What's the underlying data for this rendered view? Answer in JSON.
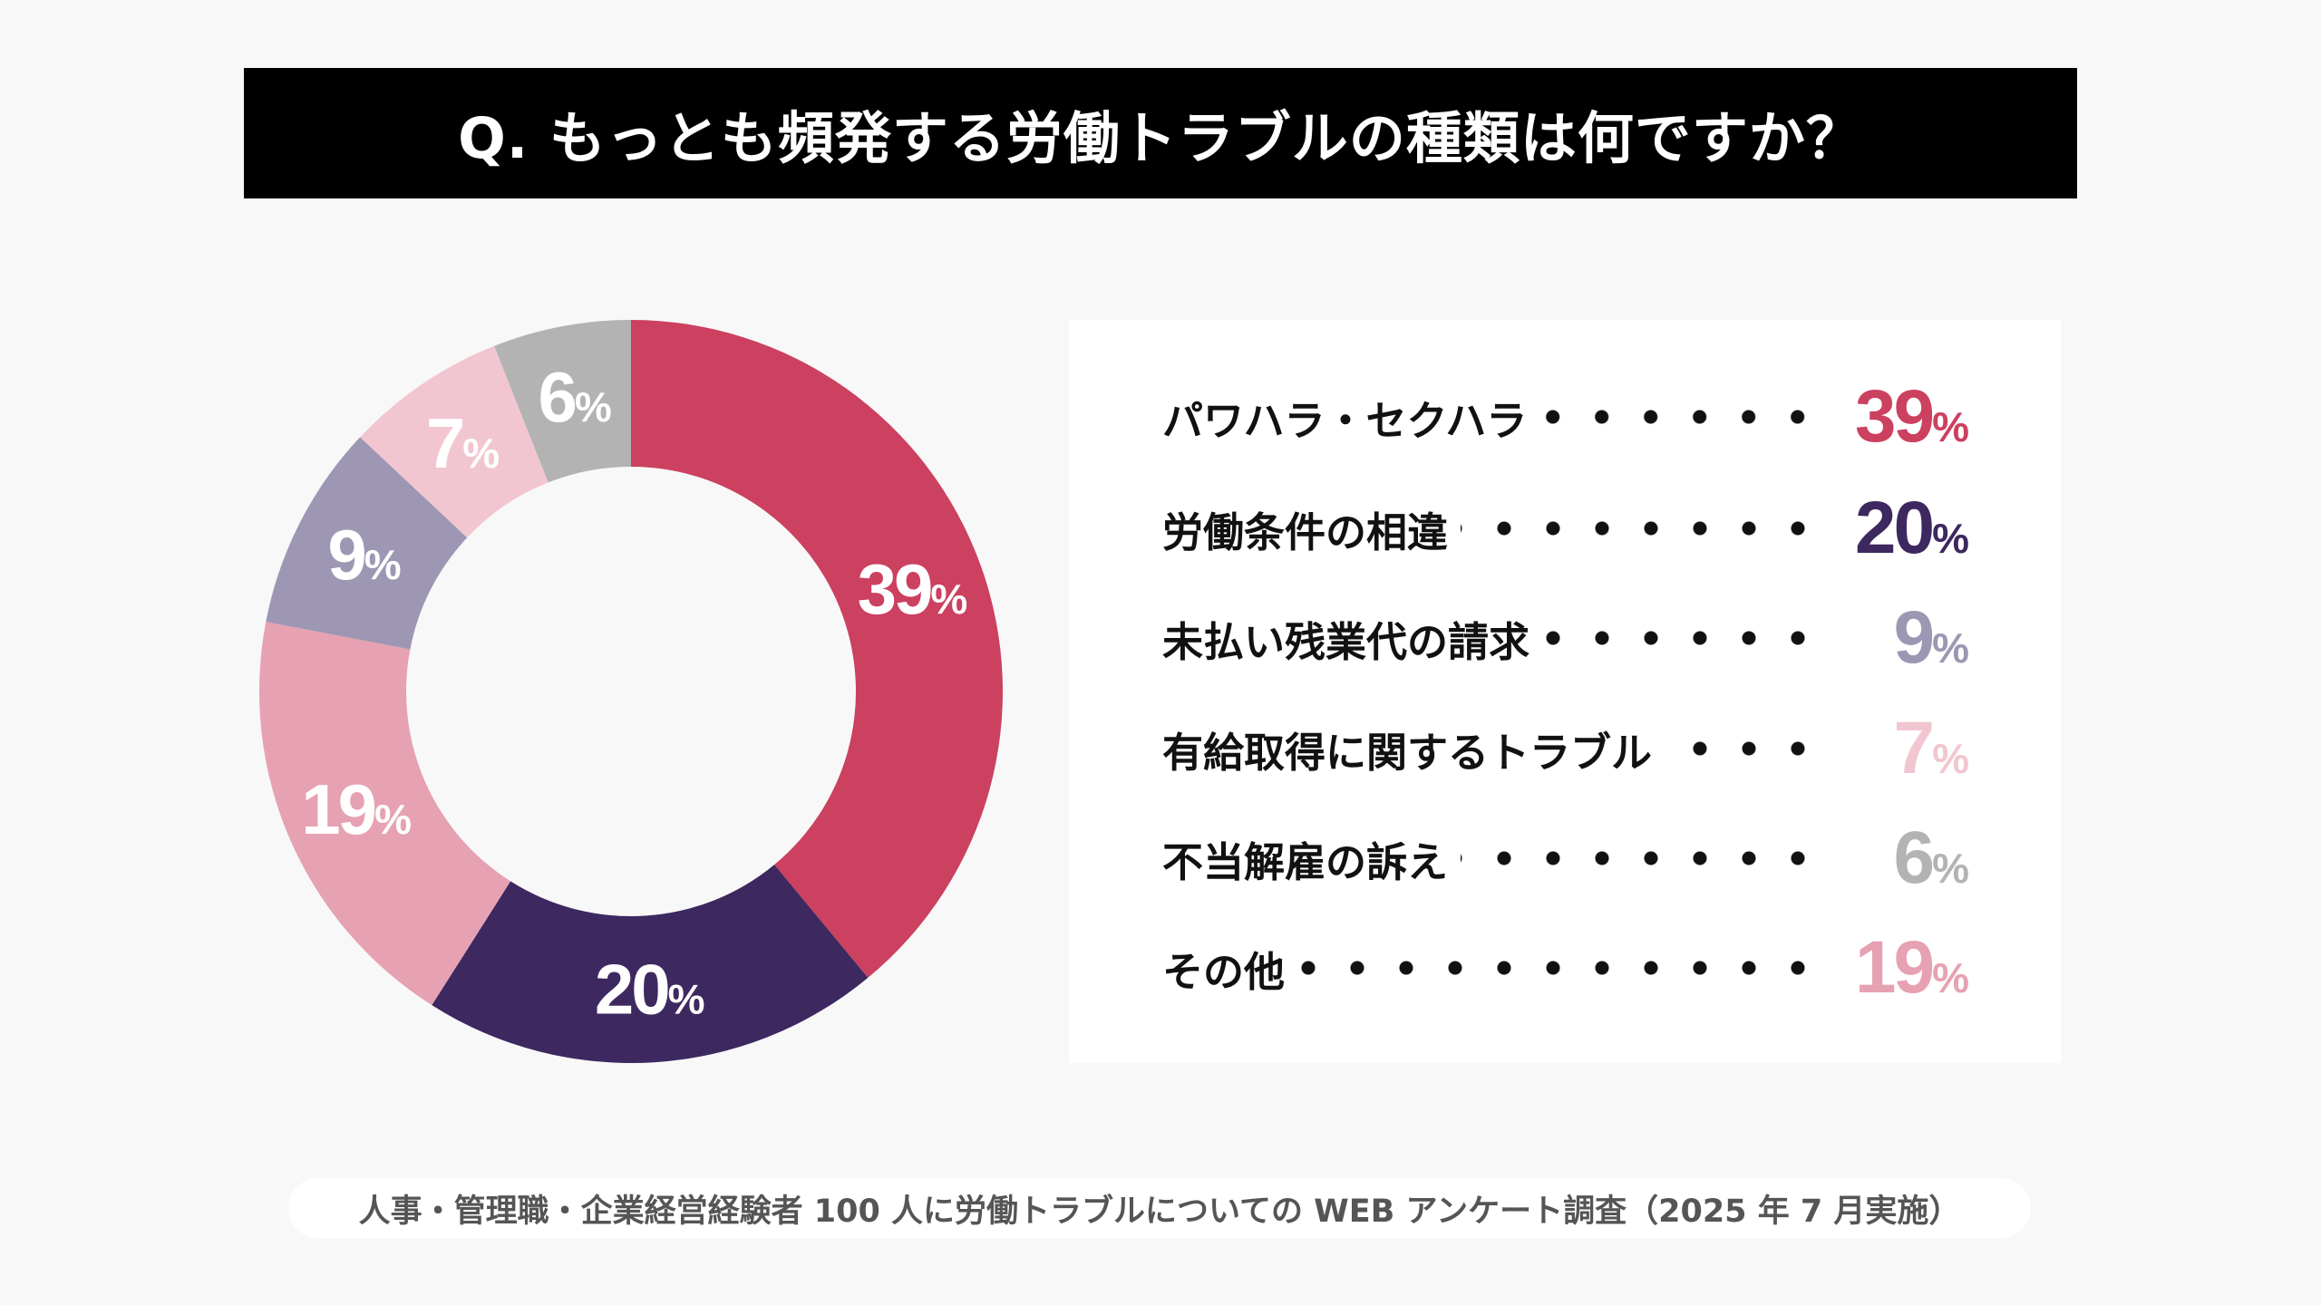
{
  "title": "Q. もっとも頻発する労働トラブルの種類は何ですか？",
  "footer": "人事・管理職・企業経営経験者 100 人に労働トラブルについての WEB アンケート調査（2025 年 7 月実施）",
  "chart_data": {
    "type": "pie",
    "donut": true,
    "start": "top, clockwise",
    "unit": "%",
    "categories": [
      "パワハラ・セクハラ",
      "労働条件の相違",
      "その他",
      "未払い残業代の請求",
      "有給取得に関するトラブル",
      "不当解雇の訴え"
    ],
    "values": [
      39,
      20,
      19,
      9,
      7,
      6
    ],
    "colors": [
      "#cc4060",
      "#3d2860",
      "#e6a2b2",
      "#9d97b3",
      "#f2c6d0",
      "#b3b3b3"
    ]
  },
  "legend": [
    {
      "label": "パワハラ・セクハラ",
      "value": "39",
      "unit": "%",
      "color": "#cc4060"
    },
    {
      "label": "労働条件の相違",
      "value": "20",
      "unit": "%",
      "color": "#3d2860"
    },
    {
      "label": "未払い残業代の請求",
      "value": "9",
      "unit": "%",
      "color": "#9d97b3"
    },
    {
      "label": "有給取得に関するトラブル",
      "value": "7",
      "unit": "%",
      "color": "#f2c6d0"
    },
    {
      "label": "不当解雇の訴え",
      "value": "6",
      "unit": "%",
      "color": "#b3b3b3"
    },
    {
      "label": "その他",
      "value": "19",
      "unit": "%",
      "color": "#e6a2b2"
    }
  ]
}
